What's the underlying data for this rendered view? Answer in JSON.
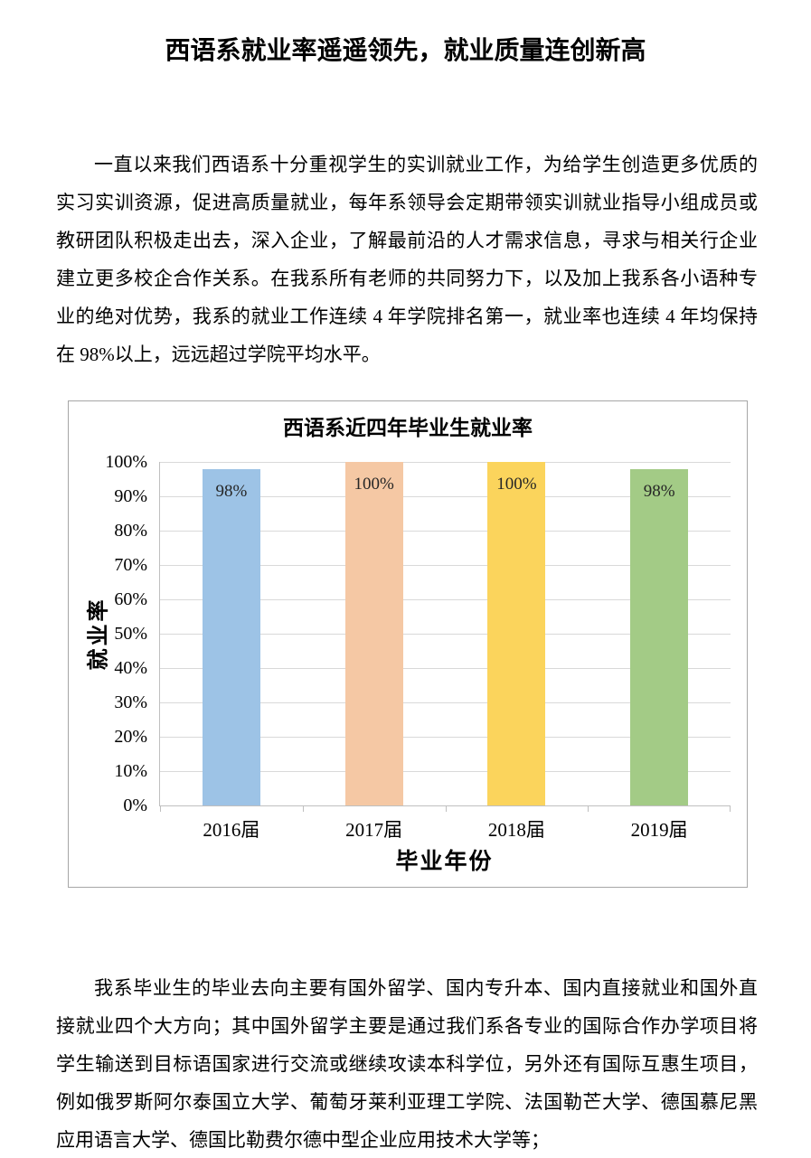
{
  "doc": {
    "title": "西语系就业率遥遥领先，就业质量连创新高",
    "paragraphs": [
      {
        "text": "一直以来我们西语系十分重视学生的实训就业工作，为给学生创造更多优质的实习实训资源，促进高质量就业，每年系领导会定期带领实训就业指导小组成员或教研团队积极走出去，深入企业，了解最前沿的人才需求信息，寻求与相关行企业建立更多校企合作关系。在我系所有老师的共同努力下，以及加上我系各小语种专业的绝对优势，我系的就业工作连续 4 年学院排名第一，就业率也连续 4 年均保持在 98%以上，远远超过学院平均水平。"
      },
      {
        "text": "我系毕业生的毕业去向主要有国外留学、国内专升本、国内直接就业和国外直接就业四个大方向；其中国外留学主要是通过我们系各专业的国际合作办学项目将学生输送到目标语国家进行交流或继续攻读本科学位，另外还有国际互惠生项目，例如俄罗斯阿尔泰国立大学、葡萄牙莱利亚理工学院、法国勒芒大学、德国慕尼黑应用语言大学、德国比勒费尔德中型企业应用技术大学等；"
      }
    ]
  },
  "chart_data": {
    "type": "bar",
    "title": "西语系近四年毕业生就业率",
    "categories": [
      "2016届",
      "2017届",
      "2018届",
      "2019届"
    ],
    "values": [
      98,
      100,
      100,
      98
    ],
    "value_labels": [
      "98%",
      "100%",
      "100%",
      "98%"
    ],
    "bar_colors": [
      "#9DC3E6",
      "#F5C8A4",
      "#FBD45C",
      "#A3CB86"
    ],
    "xlabel": "毕业年份",
    "ylabel": "就业率",
    "ylim": [
      0,
      100
    ],
    "ytick_step": 10,
    "ytick_labels": [
      "0%",
      "10%",
      "20%",
      "30%",
      "40%",
      "50%",
      "60%",
      "70%",
      "80%",
      "90%",
      "100%"
    ],
    "grid": true,
    "legend": "none",
    "colors": {
      "gridline": "#D9D9D9",
      "axis": "#BFBFBF",
      "box_border": "#A6A6A6",
      "label_text": "#262626"
    }
  }
}
